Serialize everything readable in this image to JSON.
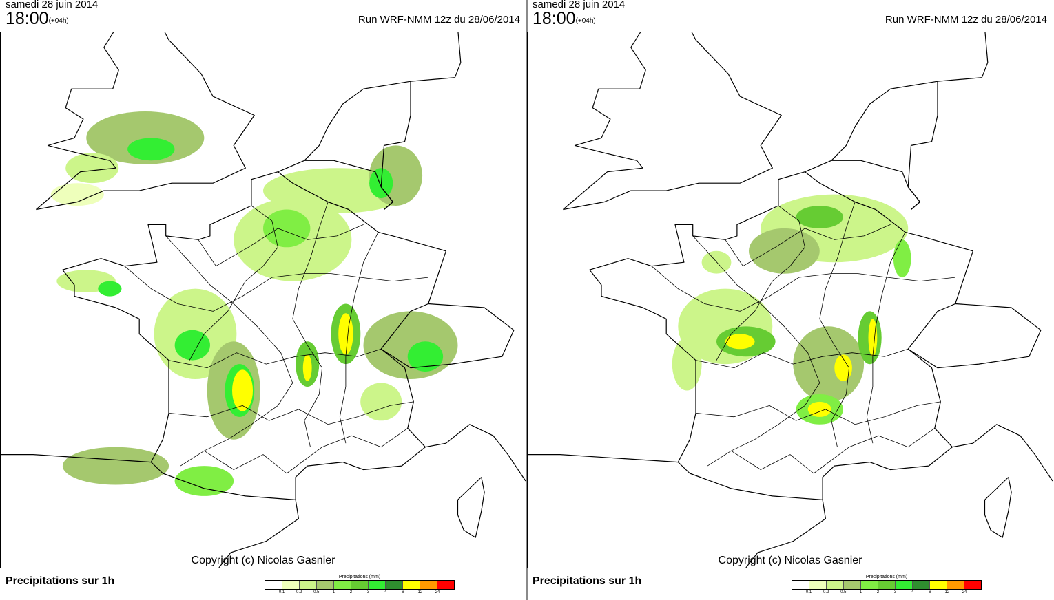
{
  "panels": [
    {
      "id": "left",
      "date": "samedi 28 juin 2014",
      "time": "18:00",
      "lead": "(+04h)",
      "run": "Run WRF-NMM 12z du 28/06/2014",
      "copyright": "Copyright (c) Nicolas Gasnier",
      "bottom_title": "Precipitations sur 1h",
      "map_type": "precipitation-map",
      "rain_areas": [
        {
          "lon": -2.0,
          "lat": 52.0,
          "rlon": 2.0,
          "rlat": 0.7,
          "level": 3
        },
        {
          "lon": -1.8,
          "lat": 51.7,
          "rlon": 0.8,
          "rlat": 0.3,
          "level": 6
        },
        {
          "lon": -3.8,
          "lat": 51.2,
          "rlon": 0.9,
          "rlat": 0.4,
          "level": 2
        },
        {
          "lon": -4.3,
          "lat": 50.5,
          "rlon": 0.9,
          "rlat": 0.3,
          "level": 1
        },
        {
          "lon": 4.5,
          "lat": 50.6,
          "rlon": 2.5,
          "rlat": 0.6,
          "level": 2
        },
        {
          "lon": 6.5,
          "lat": 51.0,
          "rlon": 0.9,
          "rlat": 0.8,
          "level": 3
        },
        {
          "lon": 6.0,
          "lat": 50.8,
          "rlon": 0.4,
          "rlat": 0.4,
          "level": 6
        },
        {
          "lon": 3.0,
          "lat": 49.3,
          "rlon": 2.0,
          "rlat": 1.1,
          "level": 2
        },
        {
          "lon": 2.8,
          "lat": 49.6,
          "rlon": 0.8,
          "rlat": 0.5,
          "level": 4
        },
        {
          "lon": -4.0,
          "lat": 48.2,
          "rlon": 1.0,
          "rlat": 0.3,
          "level": 2
        },
        {
          "lon": -3.2,
          "lat": 48.0,
          "rlon": 0.4,
          "rlat": 0.2,
          "level": 6
        },
        {
          "lon": -0.3,
          "lat": 46.8,
          "rlon": 1.4,
          "rlat": 1.2,
          "level": 2
        },
        {
          "lon": -0.4,
          "lat": 46.5,
          "rlon": 0.6,
          "rlat": 0.4,
          "level": 6
        },
        {
          "lon": 1.0,
          "lat": 45.3,
          "rlon": 0.9,
          "rlat": 1.3,
          "level": 3
        },
        {
          "lon": 1.2,
          "lat": 45.3,
          "rlon": 0.5,
          "rlat": 0.7,
          "level": 6
        },
        {
          "lon": 1.3,
          "lat": 45.3,
          "rlon": 0.35,
          "rlat": 0.55,
          "level": 8
        },
        {
          "lon": 3.5,
          "lat": 46.0,
          "rlon": 0.4,
          "rlat": 0.6,
          "level": 5
        },
        {
          "lon": 3.5,
          "lat": 45.9,
          "rlon": 0.15,
          "rlat": 0.35,
          "level": 8
        },
        {
          "lon": 4.8,
          "lat": 46.8,
          "rlon": 0.5,
          "rlat": 0.8,
          "level": 5
        },
        {
          "lon": 4.8,
          "lat": 46.8,
          "rlon": 0.25,
          "rlat": 0.55,
          "level": 8
        },
        {
          "lon": 7.0,
          "lat": 46.5,
          "rlon": 1.6,
          "rlat": 0.9,
          "level": 3
        },
        {
          "lon": 7.5,
          "lat": 46.2,
          "rlon": 0.6,
          "rlat": 0.4,
          "level": 6
        },
        {
          "lon": 6.0,
          "lat": 45.0,
          "rlon": 0.7,
          "rlat": 0.5,
          "level": 2
        },
        {
          "lon": -3.0,
          "lat": 43.3,
          "rlon": 1.8,
          "rlat": 0.5,
          "level": 3
        },
        {
          "lon": 0.0,
          "lat": 42.9,
          "rlon": 1.0,
          "rlat": 0.4,
          "level": 4
        }
      ]
    },
    {
      "id": "right",
      "date": "samedi 28 juin 2014",
      "time": "18:00",
      "lead": "(+04h)",
      "run": "Run WRF-NMM 12z du 28/06/2014",
      "copyright": "Copyright (c) Nicolas Gasnier",
      "bottom_title": "Precipitations sur 1h",
      "map_type": "precipitation-map",
      "rain_areas": [
        {
          "lon": 3.5,
          "lat": 49.6,
          "rlon": 2.5,
          "rlat": 0.9,
          "level": 2
        },
        {
          "lon": 3.0,
          "lat": 49.9,
          "rlon": 0.8,
          "rlat": 0.3,
          "level": 5
        },
        {
          "lon": 1.8,
          "lat": 49.0,
          "rlon": 1.2,
          "rlat": 0.6,
          "level": 3
        },
        {
          "lon": -0.5,
          "lat": 48.7,
          "rlon": 0.5,
          "rlat": 0.3,
          "level": 2
        },
        {
          "lon": -0.2,
          "lat": 47.0,
          "rlon": 1.6,
          "rlat": 1.0,
          "level": 2
        },
        {
          "lon": 0.5,
          "lat": 46.6,
          "rlon": 1.0,
          "rlat": 0.4,
          "level": 5
        },
        {
          "lon": 0.3,
          "lat": 46.6,
          "rlon": 0.5,
          "rlat": 0.2,
          "level": 8
        },
        {
          "lon": 3.3,
          "lat": 46.0,
          "rlon": 1.2,
          "rlat": 1.0,
          "level": 3
        },
        {
          "lon": 3.8,
          "lat": 45.9,
          "rlon": 0.3,
          "rlat": 0.35,
          "level": 8
        },
        {
          "lon": 3.0,
          "lat": 44.8,
          "rlon": 0.8,
          "rlat": 0.4,
          "level": 4
        },
        {
          "lon": 3.0,
          "lat": 44.8,
          "rlon": 0.4,
          "rlat": 0.2,
          "level": 8
        },
        {
          "lon": 4.7,
          "lat": 46.7,
          "rlon": 0.4,
          "rlat": 0.7,
          "level": 5
        },
        {
          "lon": 4.8,
          "lat": 46.7,
          "rlon": 0.15,
          "rlat": 0.5,
          "level": 8
        },
        {
          "lon": 5.8,
          "lat": 48.8,
          "rlon": 0.3,
          "rlat": 0.5,
          "level": 4
        },
        {
          "lon": -1.5,
          "lat": 46.0,
          "rlon": 0.5,
          "rlat": 0.7,
          "level": 2
        }
      ]
    }
  ],
  "legend": {
    "title": "Precipitations (mm)",
    "colors": [
      "#ffffff",
      "#eeffbb",
      "#ccf58a",
      "#a5c86e",
      "#80ee44",
      "#66cc33",
      "#33ee33",
      "#2f8f2f",
      "#ffff00",
      "#ff9900",
      "#ff0000"
    ],
    "ticks": [
      "0.1",
      "0.2",
      "0.5",
      "1",
      "2",
      "3",
      "4",
      "6",
      "12",
      "24"
    ]
  },
  "rain_colors": [
    "#eeffbb",
    "#ccf58a",
    "#a5c86e",
    "#80ee44",
    "#66cc33",
    "#33ee33",
    "#2f8f2f",
    "#ffff00"
  ]
}
